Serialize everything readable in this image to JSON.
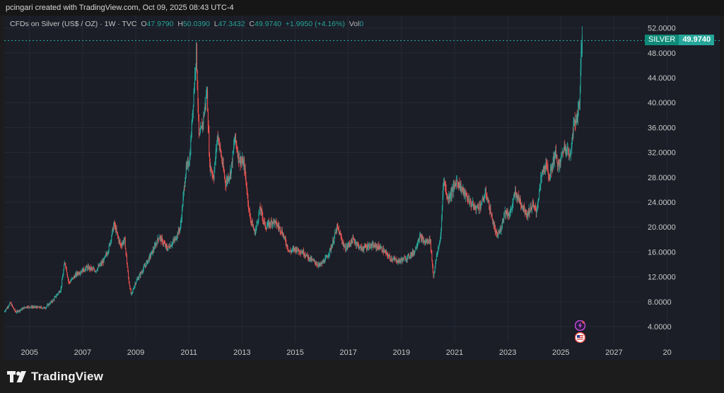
{
  "header": {
    "creator_text": "pcingari created with TradingView.com, Oct 09, 2025 08:43 UTC-4"
  },
  "legend": {
    "symbol": "CFDs on Silver (US$ / OZ) · 1W · TVC",
    "open_label": "O",
    "open": "47.9790",
    "high_label": "H",
    "high": "50.0390",
    "low_label": "L",
    "low": "47.3432",
    "close_label": "C",
    "close": "49.9740",
    "change": "+1.9950 (+4.16%)",
    "vol_label": "Vol",
    "vol": "0"
  },
  "price_tag": {
    "name": "SILVER",
    "price": "49.9740"
  },
  "footer": {
    "brand": "TradingView"
  },
  "colors": {
    "up": "#26a69a",
    "down": "#ef5350",
    "background": "#1b1d27",
    "grid": "#262a37",
    "last_price_line": "#26a69a"
  },
  "icons": [
    "lightning-event-icon",
    "us-flag-event-icon",
    "tradingview-logo-icon"
  ],
  "chart_data": {
    "type": "candlestick",
    "title": "CFDs on Silver (US$ / OZ)",
    "interval": "1W",
    "source": "TVC",
    "y_tick_labels": [
      "4.0000",
      "8.0000",
      "12.0000",
      "16.0000",
      "20.0000",
      "24.0000",
      "28.0000",
      "32.0000",
      "36.0000",
      "40.0000",
      "44.0000",
      "48.0000",
      "52.0000"
    ],
    "x_tick_labels": [
      "2005",
      "2007",
      "2009",
      "2011",
      "2013",
      "2015",
      "2017",
      "2019",
      "2021",
      "2023",
      "2025",
      "2027",
      "20"
    ],
    "ylim": [
      1.5,
      54
    ],
    "xlim": [
      2004.05,
      2028.0
    ],
    "last_price": 49.974,
    "grid": true,
    "series": [
      {
        "name": "SILVER",
        "price_path": [
          [
            2004.05,
            6.3
          ],
          [
            2004.3,
            7.8
          ],
          [
            2004.5,
            6.3
          ],
          [
            2004.9,
            7.2
          ],
          [
            2005.3,
            7.1
          ],
          [
            2005.6,
            7.0
          ],
          [
            2005.9,
            8.2
          ],
          [
            2006.2,
            10.0
          ],
          [
            2006.35,
            14.5
          ],
          [
            2006.5,
            11.0
          ],
          [
            2006.8,
            12.5
          ],
          [
            2007.2,
            13.5
          ],
          [
            2007.5,
            13.0
          ],
          [
            2007.8,
            14.5
          ],
          [
            2008.0,
            16.5
          ],
          [
            2008.2,
            20.5
          ],
          [
            2008.45,
            17.0
          ],
          [
            2008.6,
            18.0
          ],
          [
            2008.75,
            11.5
          ],
          [
            2008.85,
            9.0
          ],
          [
            2009.0,
            11.0
          ],
          [
            2009.4,
            14.0
          ],
          [
            2009.7,
            16.5
          ],
          [
            2009.9,
            18.5
          ],
          [
            2010.2,
            16.5
          ],
          [
            2010.5,
            18.0
          ],
          [
            2010.7,
            20.0
          ],
          [
            2010.9,
            29.0
          ],
          [
            2011.05,
            31.0
          ],
          [
            2011.3,
            48.5
          ],
          [
            2011.4,
            34.0
          ],
          [
            2011.55,
            37.0
          ],
          [
            2011.7,
            42.0
          ],
          [
            2011.8,
            30.0
          ],
          [
            2011.95,
            28.0
          ],
          [
            2012.1,
            35.0
          ],
          [
            2012.4,
            27.0
          ],
          [
            2012.6,
            29.0
          ],
          [
            2012.75,
            34.5
          ],
          [
            2012.9,
            31.0
          ],
          [
            2013.1,
            30.0
          ],
          [
            2013.3,
            22.0
          ],
          [
            2013.5,
            19.0
          ],
          [
            2013.7,
            23.0
          ],
          [
            2013.9,
            20.0
          ],
          [
            2014.2,
            21.0
          ],
          [
            2014.5,
            19.5
          ],
          [
            2014.8,
            16.0
          ],
          [
            2015.0,
            16.5
          ],
          [
            2015.3,
            16.0
          ],
          [
            2015.6,
            14.8
          ],
          [
            2015.95,
            13.8
          ],
          [
            2016.2,
            15.0
          ],
          [
            2016.4,
            17.0
          ],
          [
            2016.6,
            20.0
          ],
          [
            2016.9,
            16.5
          ],
          [
            2017.2,
            18.0
          ],
          [
            2017.5,
            16.5
          ],
          [
            2017.8,
            17.0
          ],
          [
            2018.2,
            16.8
          ],
          [
            2018.6,
            15.0
          ],
          [
            2018.9,
            14.5
          ],
          [
            2019.2,
            15.0
          ],
          [
            2019.5,
            16.0
          ],
          [
            2019.7,
            18.5
          ],
          [
            2019.9,
            17.5
          ],
          [
            2020.1,
            18.0
          ],
          [
            2020.22,
            12.0
          ],
          [
            2020.35,
            15.5
          ],
          [
            2020.5,
            18.5
          ],
          [
            2020.6,
            28.0
          ],
          [
            2020.75,
            24.5
          ],
          [
            2020.9,
            25.5
          ],
          [
            2021.1,
            27.5
          ],
          [
            2021.3,
            26.0
          ],
          [
            2021.6,
            24.0
          ],
          [
            2021.8,
            23.0
          ],
          [
            2022.0,
            23.5
          ],
          [
            2022.2,
            25.5
          ],
          [
            2022.45,
            21.0
          ],
          [
            2022.6,
            18.5
          ],
          [
            2022.75,
            19.5
          ],
          [
            2022.9,
            22.5
          ],
          [
            2023.1,
            22.0
          ],
          [
            2023.3,
            25.5
          ],
          [
            2023.5,
            24.0
          ],
          [
            2023.75,
            22.0
          ],
          [
            2023.95,
            23.5
          ],
          [
            2024.1,
            22.5
          ],
          [
            2024.3,
            28.5
          ],
          [
            2024.45,
            30.0
          ],
          [
            2024.6,
            28.0
          ],
          [
            2024.8,
            32.0
          ],
          [
            2024.95,
            29.5
          ],
          [
            2025.1,
            32.5
          ],
          [
            2025.25,
            33.0
          ],
          [
            2025.35,
            31.0
          ],
          [
            2025.5,
            36.5
          ],
          [
            2025.65,
            38.0
          ],
          [
            2025.72,
            40.5
          ],
          [
            2025.77,
            46.0
          ],
          [
            2025.8,
            49.97
          ]
        ]
      }
    ],
    "events": [
      {
        "icon": "lightning",
        "x": 2025.72,
        "y": 4.2
      },
      {
        "icon": "us-flag",
        "x": 2025.72,
        "y": 2.2
      }
    ]
  }
}
